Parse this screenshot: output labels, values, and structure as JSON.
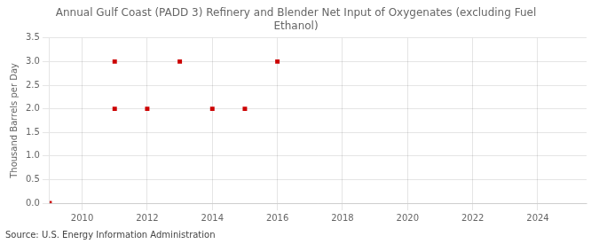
{
  "chart_data": {
    "type": "scatter",
    "title": "Annual Gulf Coast (PADD 3) Refinery and Blender Net Input of Oxygenates (excluding Fuel\nEthanol)",
    "ylabel": "Thousand Barrels per Day",
    "annotation": "Source: U.S. Energy Information Administration",
    "x": [
      2009,
      2011,
      2011,
      2012,
      2013,
      2014,
      2015,
      2016
    ],
    "values": [
      0.0,
      2.0,
      3.0,
      2.0,
      3.0,
      2.0,
      2.0,
      3.0
    ],
    "color": "#cc0000",
    "marker": "square",
    "xlim": [
      2009,
      2025.5
    ],
    "ylim": [
      0.0,
      3.5
    ],
    "xticks": [
      2010,
      2012,
      2014,
      2016,
      2018,
      2020,
      2022,
      2024
    ],
    "yticks": [
      {
        "value": 0,
        "label": "0.0"
      },
      0.5,
      {
        "value": 1,
        "label": "1.0"
      },
      1.5,
      {
        "value": 2,
        "label": "2.0"
      },
      2.5,
      {
        "value": 3,
        "label": "3.0"
      },
      3.5
    ],
    "grid": true
  }
}
